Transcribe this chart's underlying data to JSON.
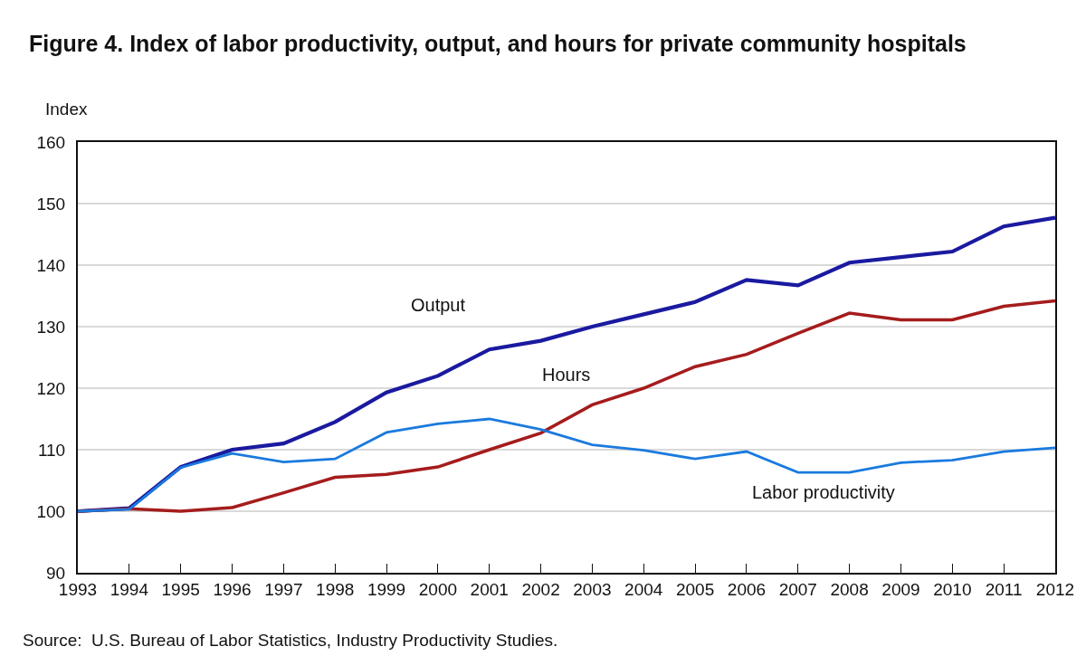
{
  "chart_data": {
    "type": "line",
    "title": "Figure 4. Index of labor productivity, output, and hours for private community hospitals",
    "ylabel": "Index",
    "x": [
      1993,
      1994,
      1995,
      1996,
      1997,
      1998,
      1999,
      2000,
      2001,
      2002,
      2003,
      2004,
      2005,
      2006,
      2007,
      2008,
      2009,
      2010,
      2011,
      2012
    ],
    "series": [
      {
        "name": "Output",
        "color": "#1a1aa0",
        "values": [
          100,
          100.5,
          107.2,
          110,
          111,
          114.5,
          119.3,
          122,
          126.3,
          127.7,
          130,
          132,
          134,
          137.6,
          136.7,
          140.4,
          141.3,
          142.2,
          146.3,
          147.7
        ]
      },
      {
        "name": "Hours",
        "color": "#a51c1c",
        "values": [
          100,
          100.4,
          100,
          100.6,
          103,
          105.5,
          106,
          107.2,
          110,
          112.7,
          117.3,
          120,
          123.5,
          125.5,
          128.9,
          132.2,
          131.1,
          131.1,
          133.3,
          134.2
        ]
      },
      {
        "name": "Labor productivity",
        "color": "#1a7ade",
        "values": [
          100,
          100.3,
          107.1,
          109.4,
          108,
          108.5,
          112.8,
          114.2,
          115,
          113.3,
          110.8,
          109.9,
          108.5,
          109.7,
          106.3,
          106.3,
          107.9,
          108.3,
          109.7,
          110.3
        ]
      }
    ],
    "xlim": [
      1993,
      2012
    ],
    "xticks": [
      1993,
      1994,
      1995,
      1996,
      1997,
      1998,
      1999,
      2000,
      2001,
      2002,
      2003,
      2004,
      2005,
      2006,
      2007,
      2008,
      2009,
      2010,
      2011,
      2012
    ],
    "ylim": [
      90,
      160
    ],
    "yticks": [
      90,
      100,
      110,
      120,
      130,
      140,
      150,
      160
    ],
    "grid": "y",
    "legend": false,
    "marker": "none",
    "line_style": "solid",
    "annotations": [
      "Source:  U.S. Bureau of Labor Statistics, Industry Productivity Studies."
    ]
  }
}
